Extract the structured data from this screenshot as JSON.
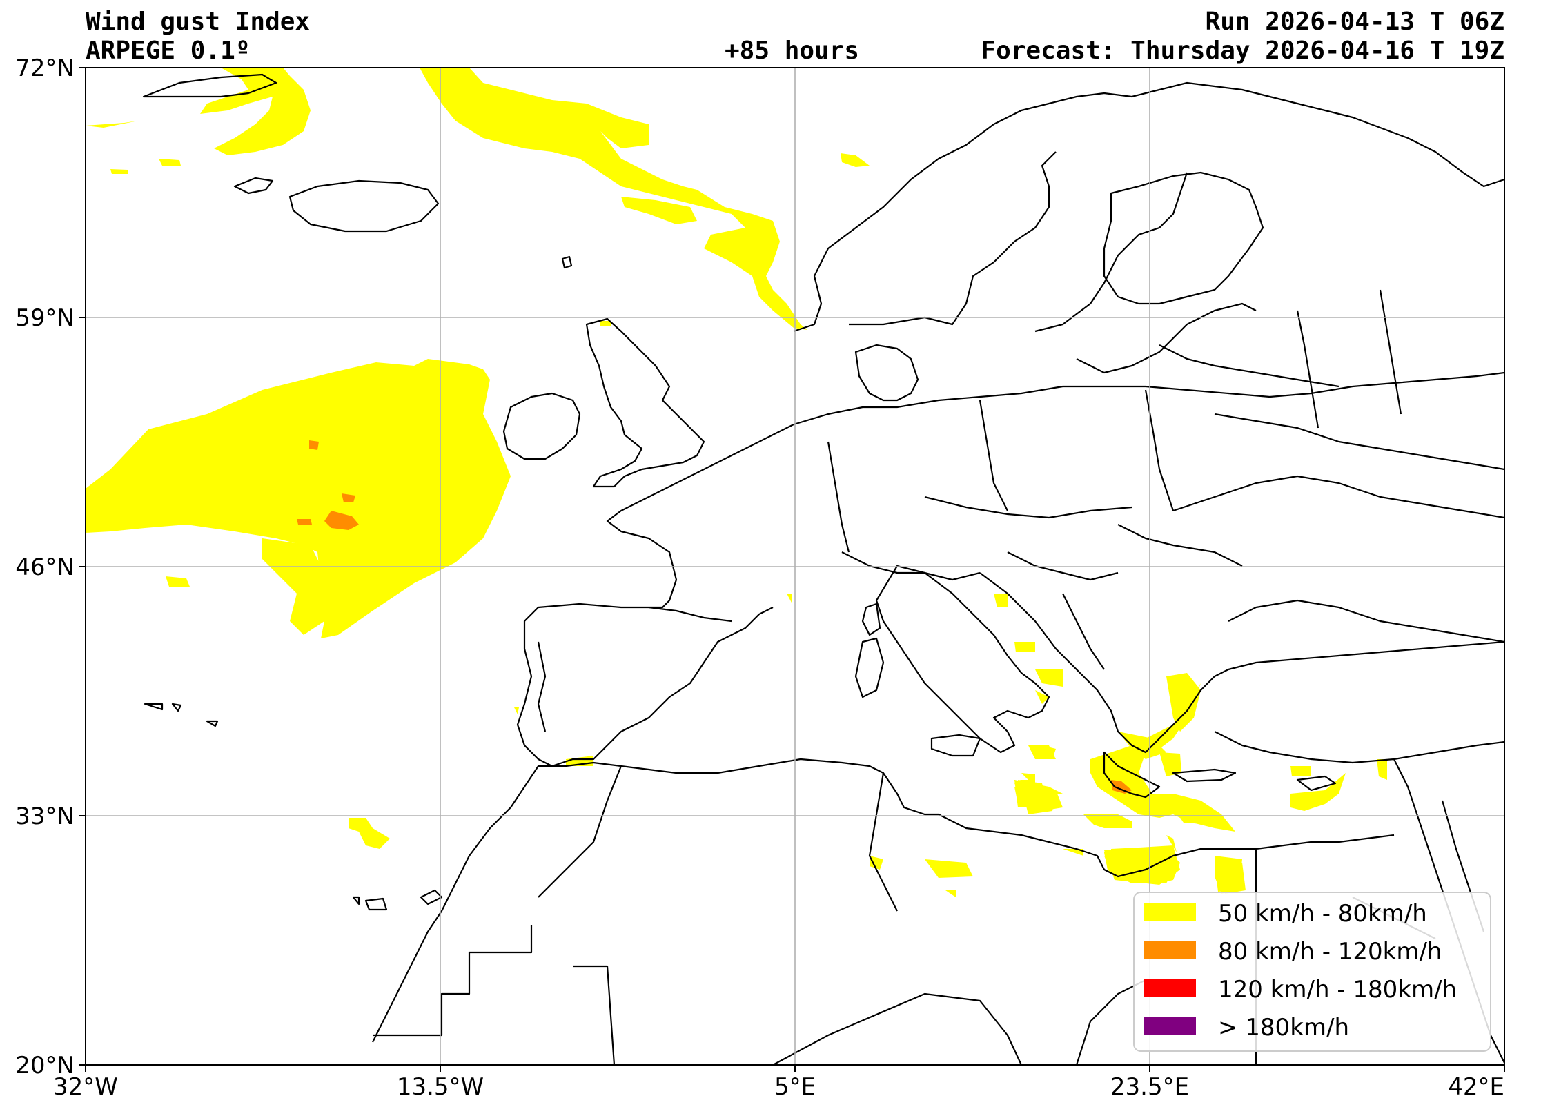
{
  "header": {
    "title": "Wind gust Index",
    "model": "ARPEGE 0.1º",
    "run": "Run 2026-04-13 T 06Z",
    "lead_time": "+85 hours",
    "forecast": "Forecast: Thursday 2026-04-16 T 19Z"
  },
  "axes": {
    "lat_labels": [
      "72°N",
      "59°N",
      "46°N",
      "33°N",
      "20°N"
    ],
    "lon_labels": [
      "32°W",
      "13.5°W",
      "5°E",
      "23.5°E",
      "42°E"
    ],
    "lat_range": [
      20,
      72
    ],
    "lon_range": [
      -32,
      42
    ],
    "grid": true
  },
  "legend": {
    "placement": "bottom-right",
    "items": [
      {
        "label": "50 km/h - 80km/h",
        "color": "#ffff00"
      },
      {
        "label": "80 km/h - 120km/h",
        "color": "#ff8c00"
      },
      {
        "label": "120 km/h - 180km/h",
        "color": "#ff0000"
      },
      {
        "label": "> 180km/h",
        "color": "#800080"
      }
    ]
  },
  "colors": {
    "land_outline": "#000000",
    "gridline": "#b0b0b0",
    "gust_50_80": "#ffff00",
    "gust_80_120": "#ff8c00"
  }
}
